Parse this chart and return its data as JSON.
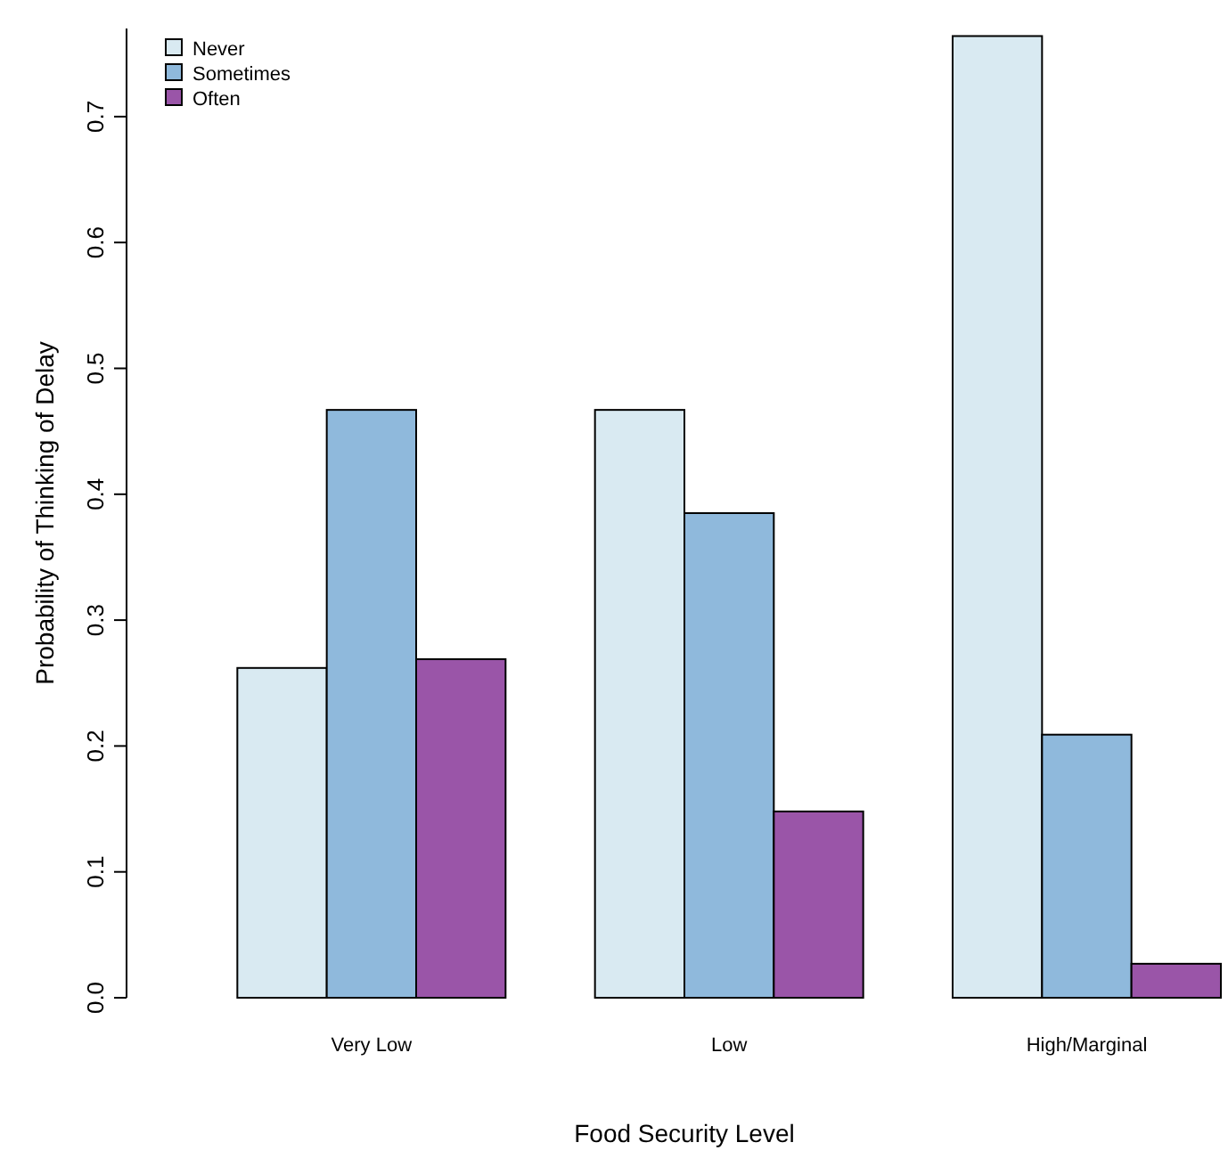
{
  "chart_data": {
    "type": "bar",
    "xlabel": "Food Security Level",
    "ylabel": "Probability of Thinking of Delay",
    "categories": [
      "Very Low",
      "Low",
      "High/Marginal"
    ],
    "series": [
      {
        "name": "Never",
        "color": "#d9eaf2",
        "values": [
          0.262,
          0.467,
          0.764
        ]
      },
      {
        "name": "Sometimes",
        "color": "#8fb9dc",
        "values": [
          0.467,
          0.385,
          0.209
        ]
      },
      {
        "name": "Often",
        "color": "#9a55a8",
        "values": [
          0.269,
          0.148,
          0.027
        ]
      }
    ],
    "ylim": [
      0,
      0.77
    ],
    "yticks": [
      {
        "value": 0,
        "label": "0.0"
      },
      0.1,
      0.2,
      0.3,
      0.4,
      0.5,
      0.6,
      0.7
    ],
    "legend": "top left",
    "grid": false
  }
}
